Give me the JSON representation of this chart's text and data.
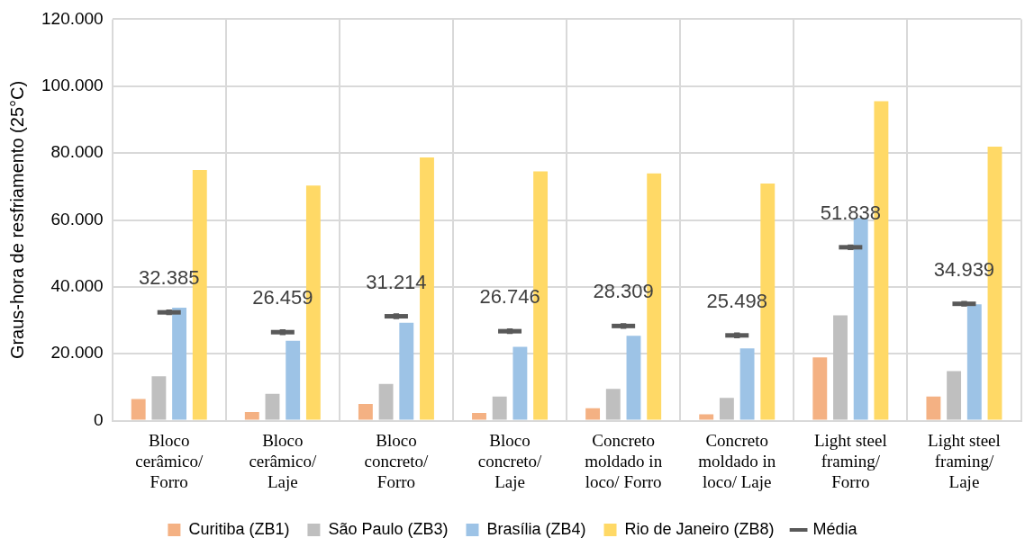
{
  "chart_data": {
    "type": "bar",
    "ylabel": "Graus-hora de resfriamento (25°C)",
    "categories": [
      "Bloco cerâmico/ Forro",
      "Bloco cerâmico/ Laje",
      "Bloco concreto/ Forro",
      "Bloco concreto/ Laje",
      "Concreto moldado in loco/ Forro",
      "Concreto moldado in loco/ Laje",
      "Light steel framing/ Forro",
      "Light steel framing/ Laje"
    ],
    "series": [
      {
        "name": "Curitiba (ZB1)",
        "color": "#f4b183",
        "values": [
          6500,
          2600,
          5000,
          2300,
          3700,
          1900,
          18900,
          7200
        ]
      },
      {
        "name": "São Paulo (ZB3)",
        "color": "#bfbfbf",
        "values": [
          13300,
          8000,
          11000,
          7200,
          9500,
          6800,
          31500,
          14800
        ]
      },
      {
        "name": "Brasília (ZB4)",
        "color": "#9dc3e6",
        "values": [
          33800,
          23900,
          29300,
          22100,
          25400,
          21600,
          60600,
          34800
        ]
      },
      {
        "name": "Rio de Janeiro (ZB8)",
        "color": "#ffd966",
        "values": [
          74900,
          70300,
          78700,
          74500,
          73900,
          70900,
          95500,
          81900
        ]
      },
      {
        "name": "Média",
        "type": "scatter",
        "marker": "square",
        "color": "#595959",
        "values": [
          32385,
          26459,
          31214,
          26746,
          28309,
          25498,
          51838,
          34939
        ],
        "value_labels": [
          "32.385",
          "26.459",
          "31.214",
          "26.746",
          "28.309",
          "25.498",
          "51.838",
          "34.939"
        ]
      }
    ],
    "ylim": [
      0,
      120000
    ],
    "yticks": [
      0,
      {
        "value": 20000,
        "label": "20.000"
      },
      {
        "value": 40000,
        "label": "40.000"
      },
      {
        "value": 60000,
        "label": "60.000"
      },
      {
        "value": 80000,
        "label": "80.000"
      },
      {
        "value": 100000,
        "label": "100.000"
      },
      {
        "value": 120000,
        "label": "120.000"
      }
    ],
    "grid": true,
    "legend": "bottom"
  }
}
